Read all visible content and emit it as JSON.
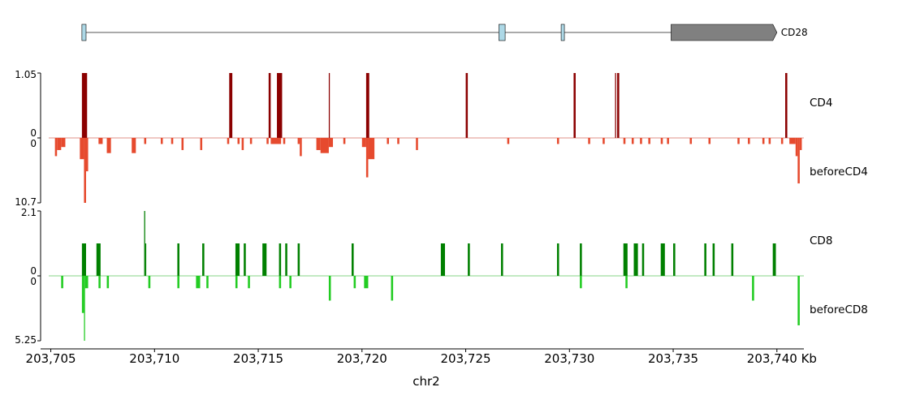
{
  "chart_data": {
    "type": "area",
    "xlabel": "chr2",
    "x_unit": "Kb",
    "xlim": [
      203704.9,
      203741.3
    ],
    "x_ticks": [
      {
        "value": 203705,
        "label": "203,705"
      },
      {
        "value": 203710,
        "label": "203,710"
      },
      {
        "value": 203715,
        "label": "203,715"
      },
      {
        "value": 203720,
        "label": "203,720"
      },
      {
        "value": 203725,
        "label": "203,725"
      },
      {
        "value": 203730,
        "label": "203,730"
      },
      {
        "value": 203735,
        "label": "203,735"
      },
      {
        "value": 203740,
        "label": "203,740"
      }
    ],
    "x_end_label": "203,740 Kb",
    "gene": {
      "name": "CD28",
      "strand": "+",
      "start": 203706.5,
      "end": 203740.0,
      "exons": [
        [
          203706.5,
          203706.7
        ],
        [
          203726.6,
          203726.9
        ],
        [
          203729.6,
          203729.7
        ],
        [
          203734.9,
          203740.0
        ]
      ],
      "colors": {
        "exon": "#add8e6",
        "last_exon": "#808080",
        "line": "#555555"
      }
    },
    "tracks": [
      {
        "name": "CD4",
        "direction": "up",
        "color": "#8b0000",
        "ylim": [
          0,
          1.05
        ],
        "ytick_labels": [
          "1.05",
          "0"
        ],
        "segments": [
          [
            203706.5,
            203706.75,
            1.05
          ],
          [
            203713.6,
            203713.75,
            1.05
          ],
          [
            203715.5,
            203715.6,
            1.05
          ],
          [
            203715.9,
            203716.15,
            1.05
          ],
          [
            203718.4,
            203718.45,
            1.05
          ],
          [
            203720.2,
            203720.35,
            1.05
          ],
          [
            203725.0,
            203725.1,
            1.05
          ],
          [
            203730.2,
            203730.3,
            1.05
          ],
          [
            203732.2,
            203732.25,
            1.05
          ],
          [
            203732.3,
            203732.4,
            1.05
          ],
          [
            203740.4,
            203740.5,
            1.05
          ]
        ]
      },
      {
        "name": "beforeCD4",
        "direction": "down",
        "color": "#e64a2e",
        "ylim": [
          0,
          10.7
        ],
        "ytick_labels": [
          "0",
          "10.7"
        ],
        "segments": [
          [
            203705.2,
            203705.3,
            3.0
          ],
          [
            203705.3,
            203705.5,
            2.0
          ],
          [
            203705.5,
            203705.7,
            1.5
          ],
          [
            203706.4,
            203706.6,
            3.5
          ],
          [
            203706.6,
            203706.7,
            10.7
          ],
          [
            203706.7,
            203706.8,
            5.5
          ],
          [
            203707.3,
            203707.5,
            1.0
          ],
          [
            203707.7,
            203707.9,
            2.5
          ],
          [
            203708.9,
            203709.1,
            2.5
          ],
          [
            203709.5,
            203709.6,
            1.0
          ],
          [
            203710.3,
            203710.4,
            1.0
          ],
          [
            203710.8,
            203710.9,
            1.0
          ],
          [
            203711.3,
            203711.4,
            2.0
          ],
          [
            203712.2,
            203712.3,
            2.0
          ],
          [
            203713.5,
            203713.6,
            1.0
          ],
          [
            203714.0,
            203714.1,
            1.0
          ],
          [
            203714.2,
            203714.3,
            2.0
          ],
          [
            203714.6,
            203714.7,
            1.0
          ],
          [
            203715.4,
            203715.5,
            1.0
          ],
          [
            203715.6,
            203716.1,
            1.0
          ],
          [
            203716.2,
            203716.3,
            1.0
          ],
          [
            203716.9,
            203717.0,
            1.0
          ],
          [
            203717.0,
            203717.1,
            3.0
          ],
          [
            203717.8,
            203718.0,
            2.0
          ],
          [
            203718.0,
            203718.4,
            2.5
          ],
          [
            203718.4,
            203718.6,
            1.5
          ],
          [
            203719.1,
            203719.2,
            1.0
          ],
          [
            203720.0,
            203720.2,
            1.5
          ],
          [
            203720.2,
            203720.3,
            6.5
          ],
          [
            203720.3,
            203720.6,
            3.5
          ],
          [
            203721.2,
            203721.3,
            1.0
          ],
          [
            203721.7,
            203721.8,
            1.0
          ],
          [
            203722.6,
            203722.7,
            2.0
          ],
          [
            203727.0,
            203727.1,
            1.0
          ],
          [
            203729.4,
            203729.5,
            1.0
          ],
          [
            203730.9,
            203731.0,
            1.0
          ],
          [
            203731.6,
            203731.7,
            1.0
          ],
          [
            203732.6,
            203732.7,
            1.0
          ],
          [
            203733.0,
            203733.1,
            1.0
          ],
          [
            203733.4,
            203733.5,
            1.0
          ],
          [
            203733.8,
            203733.9,
            1.0
          ],
          [
            203734.4,
            203734.5,
            1.0
          ],
          [
            203734.7,
            203734.8,
            1.0
          ],
          [
            203735.8,
            203735.9,
            1.0
          ],
          [
            203736.7,
            203736.8,
            1.0
          ],
          [
            203738.1,
            203738.2,
            1.0
          ],
          [
            203738.6,
            203738.7,
            1.0
          ],
          [
            203739.3,
            203739.4,
            1.0
          ],
          [
            203739.6,
            203739.7,
            1.0
          ],
          [
            203740.2,
            203740.3,
            1.0
          ],
          [
            203740.6,
            203740.9,
            1.0
          ],
          [
            203740.9,
            203741.0,
            3.0
          ],
          [
            203741.0,
            203741.1,
            7.5
          ],
          [
            203741.1,
            203741.2,
            2.0
          ]
        ]
      },
      {
        "name": "CD8",
        "direction": "up",
        "color": "#008000",
        "ylim": [
          0,
          2.1
        ],
        "ytick_labels": [
          "2.1",
          "0"
        ],
        "segments": [
          [
            203706.5,
            203706.7,
            1.05
          ],
          [
            203707.2,
            203707.4,
            1.05
          ],
          [
            203709.5,
            203709.55,
            2.1
          ],
          [
            203709.55,
            203709.6,
            1.05
          ],
          [
            203711.1,
            203711.2,
            1.05
          ],
          [
            203712.3,
            203712.4,
            1.05
          ],
          [
            203713.9,
            203714.1,
            1.05
          ],
          [
            203714.3,
            203714.4,
            1.05
          ],
          [
            203715.2,
            203715.4,
            1.05
          ],
          [
            203716.0,
            203716.1,
            1.05
          ],
          [
            203716.3,
            203716.4,
            1.05
          ],
          [
            203716.9,
            203717.0,
            1.05
          ],
          [
            203719.5,
            203719.6,
            1.05
          ],
          [
            203723.8,
            203724.0,
            1.05
          ],
          [
            203725.1,
            203725.2,
            1.05
          ],
          [
            203726.7,
            203726.8,
            1.05
          ],
          [
            203729.4,
            203729.5,
            1.05
          ],
          [
            203730.5,
            203730.6,
            1.05
          ],
          [
            203732.6,
            203732.8,
            1.05
          ],
          [
            203733.1,
            203733.3,
            1.05
          ],
          [
            203733.5,
            203733.6,
            1.05
          ],
          [
            203734.4,
            203734.6,
            1.05
          ],
          [
            203735.0,
            203735.1,
            1.05
          ],
          [
            203736.5,
            203736.6,
            1.05
          ],
          [
            203736.9,
            203737.0,
            1.05
          ],
          [
            203737.8,
            203737.9,
            1.05
          ],
          [
            203739.8,
            203739.95,
            1.05
          ]
        ]
      },
      {
        "name": "beforeCD8",
        "direction": "down",
        "color": "#22cc22",
        "ylim": [
          0,
          5.25
        ],
        "ytick_labels": [
          "0",
          "5.25"
        ],
        "segments": [
          [
            203705.5,
            203705.6,
            1.0
          ],
          [
            203706.5,
            203706.6,
            3.0
          ],
          [
            203706.6,
            203706.65,
            5.25
          ],
          [
            203706.65,
            203706.8,
            1.0
          ],
          [
            203707.3,
            203707.4,
            1.0
          ],
          [
            203707.7,
            203707.8,
            1.0
          ],
          [
            203709.7,
            203709.8,
            1.0
          ],
          [
            203711.1,
            203711.2,
            1.0
          ],
          [
            203712.0,
            203712.2,
            1.0
          ],
          [
            203712.5,
            203712.6,
            1.0
          ],
          [
            203713.9,
            203714.0,
            1.0
          ],
          [
            203714.5,
            203714.6,
            1.0
          ],
          [
            203716.0,
            203716.1,
            1.0
          ],
          [
            203716.5,
            203716.6,
            1.0
          ],
          [
            203718.4,
            203718.5,
            2.0
          ],
          [
            203719.6,
            203719.7,
            1.0
          ],
          [
            203720.1,
            203720.3,
            1.0
          ],
          [
            203721.4,
            203721.5,
            2.0
          ],
          [
            203730.5,
            203730.6,
            1.0
          ],
          [
            203732.7,
            203732.8,
            1.0
          ],
          [
            203738.8,
            203738.9,
            2.0
          ],
          [
            203741.0,
            203741.1,
            4.0
          ]
        ]
      }
    ]
  }
}
